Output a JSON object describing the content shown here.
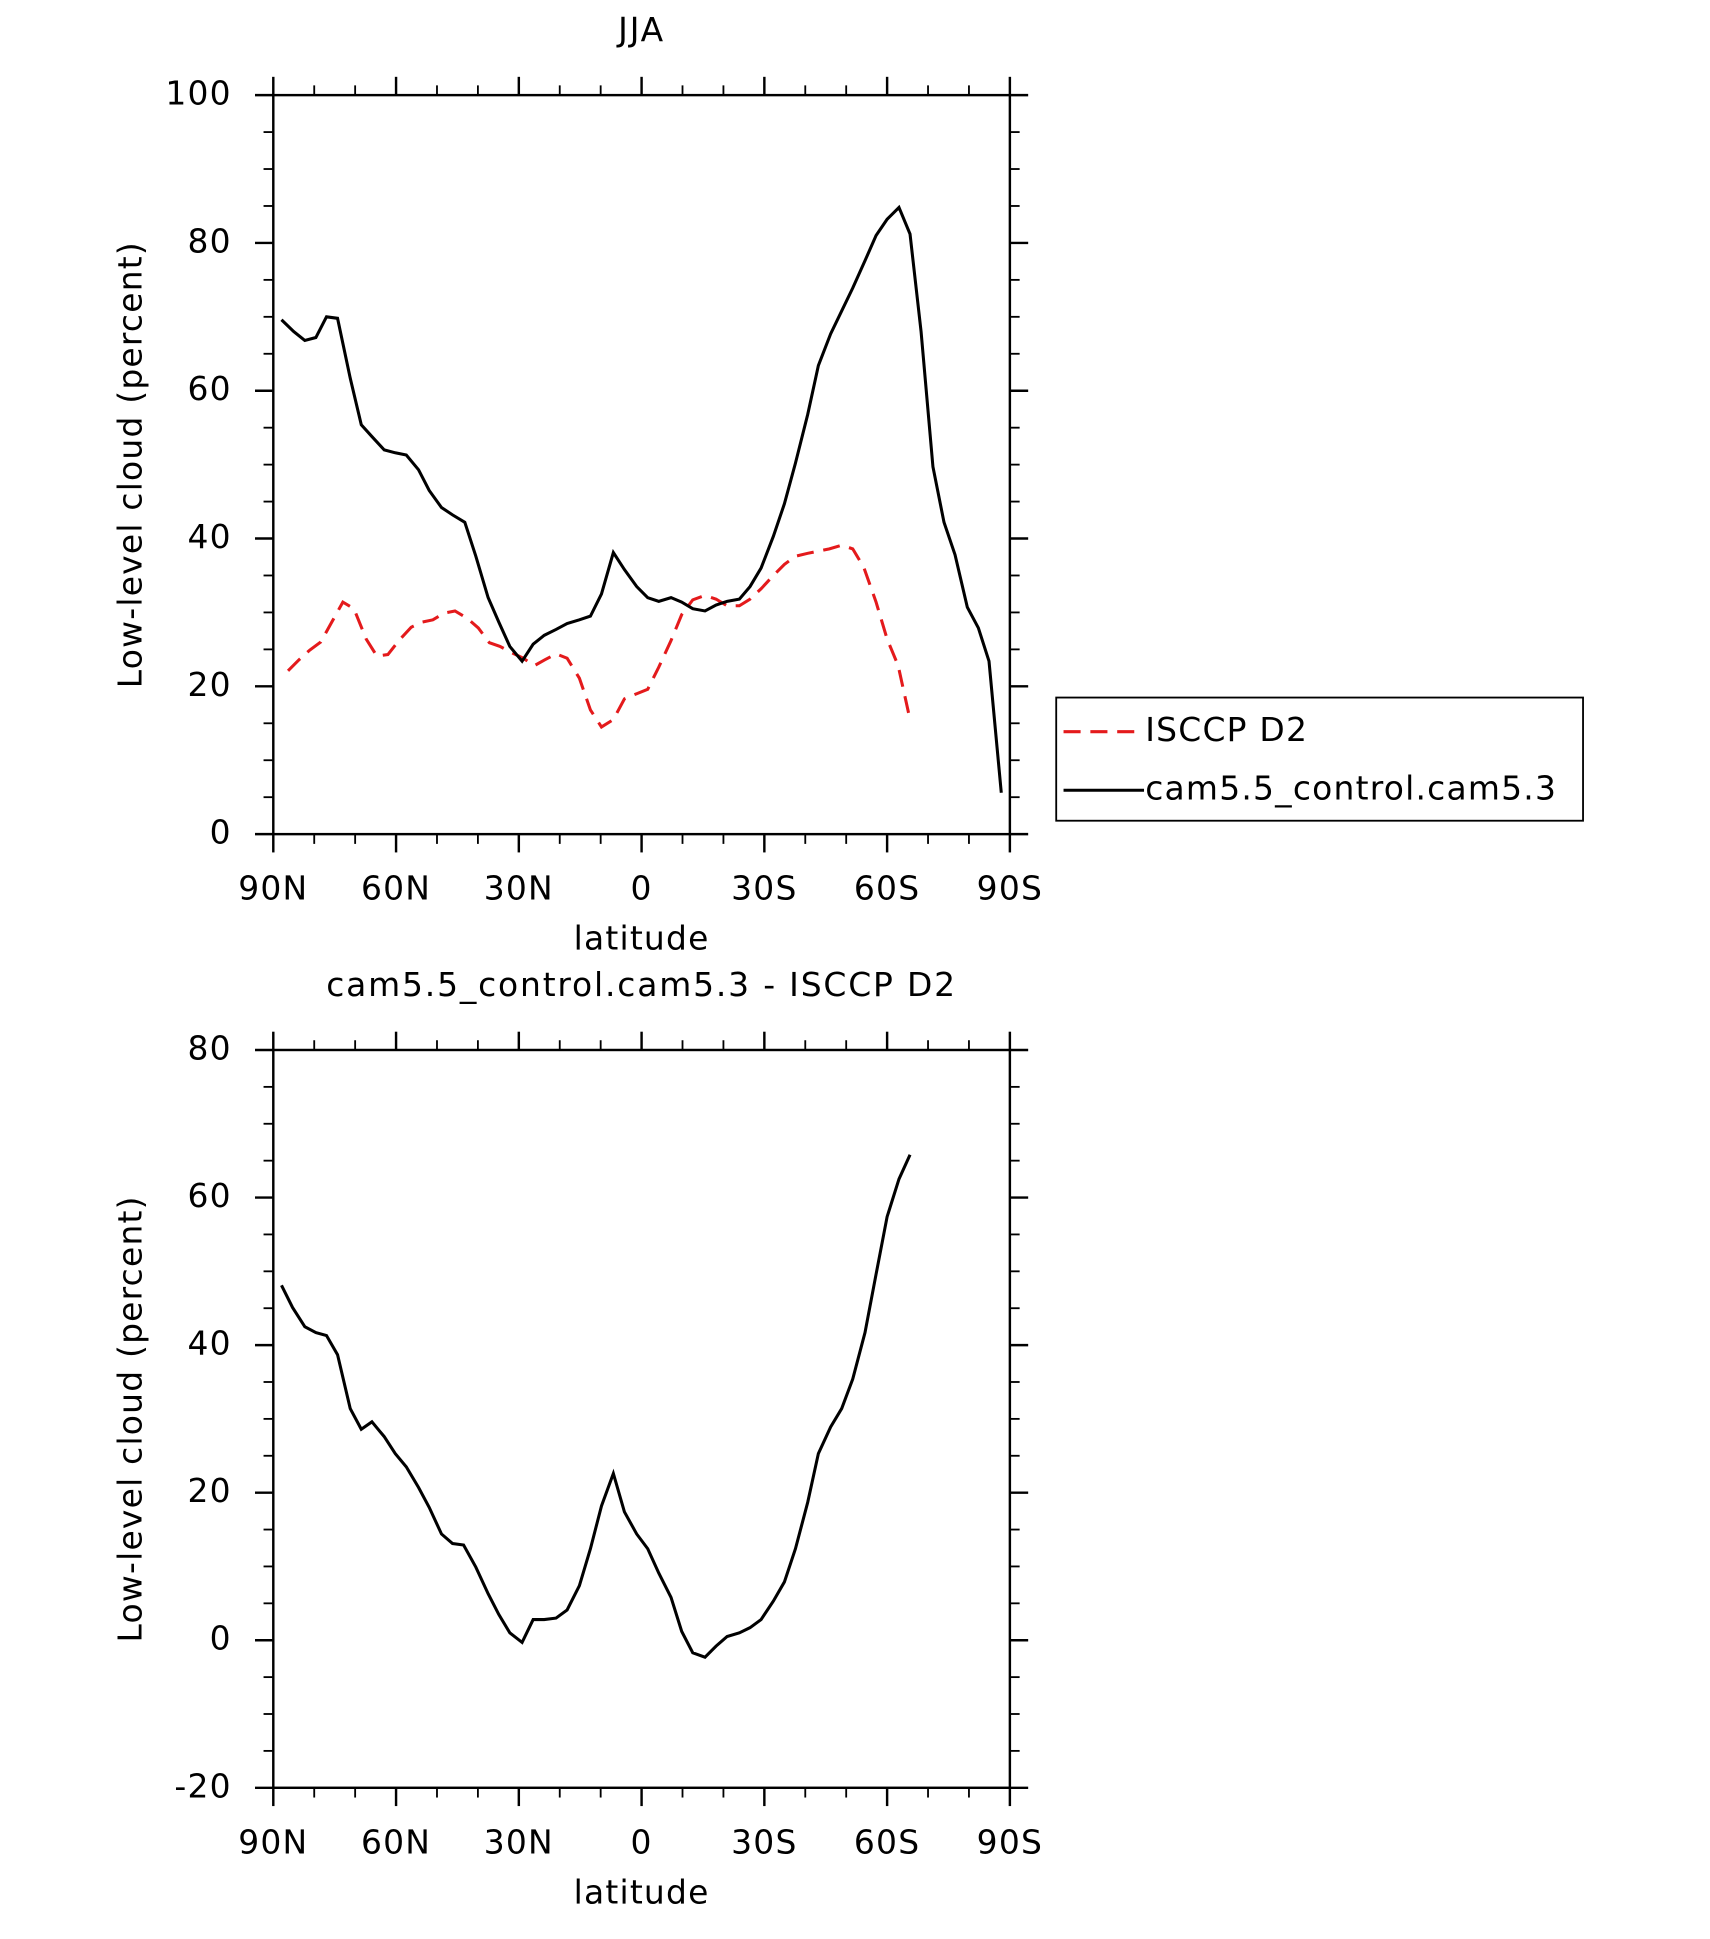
{
  "chart_data": [
    {
      "type": "line",
      "title": "JJA",
      "xlabel": "latitude",
      "ylabel": "Low-level cloud (percent)",
      "xlim": [
        90,
        -90
      ],
      "xticks": [
        {
          "value": 90,
          "label": "90N"
        },
        {
          "value": 60,
          "label": "60N"
        },
        {
          "value": 30,
          "label": "30N"
        },
        0,
        {
          "value": -30,
          "label": "30S"
        },
        {
          "value": -60,
          "label": "60S"
        },
        {
          "value": -90,
          "label": "90S"
        }
      ],
      "ylim": [
        0,
        100
      ],
      "yticks": [
        0,
        20,
        40,
        60,
        80,
        100
      ],
      "legend": "right",
      "series": [
        {
          "name": "ISCCP D2",
          "color": "#e41a1c",
          "linestyle": "dashed",
          "x": [
            86.4,
            83.7,
            81.1,
            78.4,
            75.7,
            73,
            70.3,
            67.3,
            64.7,
            62,
            59.3,
            56.3,
            53.6,
            51,
            48.3,
            45.6,
            42.6,
            39.9,
            37.2,
            34.6,
            31.9,
            28.9,
            26.2,
            23.6,
            20.9,
            18.2,
            15.2,
            12.5,
            9.8,
            6.9,
            4.2,
            1.2,
            -1.5,
            -4.2,
            -7.2,
            -9.8,
            -12.5,
            -15.5,
            -18.2,
            -20.9,
            -23.9,
            -26.5,
            -29.2,
            -32.2,
            -34.9,
            -37.6,
            -40.6,
            -43.2,
            -45.9,
            -48.9,
            -51.6,
            -54.3,
            -57.3,
            -60,
            -62.7,
            -65.6
          ],
          "values": [
            22.1,
            23.6,
            24.9,
            26,
            28.7,
            31.4,
            30.5,
            26.4,
            24.1,
            24.3,
            26.2,
            28,
            28.7,
            29,
            29.9,
            30.2,
            29.2,
            27.9,
            25.9,
            25.4,
            24.6,
            23.8,
            22.8,
            23.6,
            24.4,
            23.8,
            21.1,
            16.8,
            14.5,
            15.5,
            18.3,
            19,
            19.6,
            22.6,
            26.2,
            29.7,
            31.7,
            32.3,
            31.8,
            30.9,
            30.9,
            31.8,
            33.2,
            35,
            36.5,
            37.6,
            38,
            38.3,
            38.6,
            39.1,
            38.6,
            36.1,
            31.4,
            26.4,
            22.8,
            15.5
          ]
        },
        {
          "name": "cam5.5_control.cam5.3",
          "color": "#000000",
          "linestyle": "solid",
          "x": [
            88,
            85,
            82.3,
            79.6,
            77,
            74.3,
            71.2,
            68.5,
            65.9,
            62.9,
            60.2,
            57.5,
            54.5,
            51.9,
            48.9,
            46.2,
            43.2,
            40.5,
            37.5,
            34.9,
            32.2,
            29.2,
            26.5,
            23.8,
            20.9,
            18.2,
            15.2,
            12.5,
            9.8,
            6.9,
            4.2,
            1.2,
            -1.5,
            -4.2,
            -7.2,
            -9.8,
            -12.5,
            -15.5,
            -18.2,
            -20.9,
            -23.9,
            -26.5,
            -29.2,
            -32.2,
            -34.9,
            -37.6,
            -40.6,
            -43.2,
            -46.2,
            -48.9,
            -51.6,
            -54.6,
            -57.3,
            -60,
            -62.9,
            -65.6,
            -68.3,
            -71.2,
            -73.9,
            -76.6,
            -79.6,
            -82.3,
            -84.9,
            -87.9
          ],
          "values": [
            69.6,
            68,
            66.8,
            67.2,
            70,
            69.8,
            61.7,
            55.4,
            53.8,
            52,
            51.6,
            51.3,
            49.3,
            46.5,
            44.2,
            43.2,
            42.2,
            37.6,
            32,
            28.7,
            25.4,
            23.4,
            25.7,
            26.9,
            27.7,
            28.5,
            29,
            29.5,
            32.5,
            38.1,
            35.8,
            33.5,
            32,
            31.5,
            32,
            31.4,
            30.5,
            30.2,
            31,
            31.5,
            31.8,
            33.5,
            36,
            40.3,
            44.7,
            50.2,
            56.8,
            63.4,
            67.7,
            70.8,
            73.9,
            77.6,
            81,
            83.2,
            84.8,
            81.2,
            68,
            49.7,
            42.2,
            37.8,
            30.7,
            27.9,
            23.4,
            5.6
          ]
        }
      ]
    },
    {
      "type": "line",
      "title": "cam5.5_control.cam5.3 - ISCCP D2",
      "xlabel": "latitude",
      "ylabel": "Low-level cloud (percent)",
      "xlim": [
        90,
        -90
      ],
      "xticks": [
        {
          "value": 90,
          "label": "90N"
        },
        {
          "value": 60,
          "label": "60N"
        },
        {
          "value": 30,
          "label": "30N"
        },
        0,
        {
          "value": -30,
          "label": "30S"
        },
        {
          "value": -60,
          "label": "60S"
        },
        {
          "value": -90,
          "label": "90S"
        }
      ],
      "ylim": [
        -20,
        80
      ],
      "yticks": [
        -20,
        0,
        20,
        40,
        60,
        80
      ],
      "series": [
        {
          "color": "#000000",
          "linestyle": "solid",
          "x": [
            88,
            85.3,
            82.3,
            79.6,
            77,
            74.3,
            71.2,
            68.5,
            65.9,
            62.9,
            60.2,
            57.5,
            54.5,
            51.9,
            48.9,
            46.2,
            43.5,
            40.5,
            37.5,
            34.9,
            32.2,
            29.2,
            26.5,
            23.8,
            20.9,
            18.2,
            15.2,
            12.5,
            9.8,
            6.9,
            4.2,
            1.2,
            -1.5,
            -4.2,
            -7.2,
            -9.8,
            -12.5,
            -15.5,
            -18.2,
            -20.9,
            -23.9,
            -26.5,
            -29.2,
            -32.2,
            -34.9,
            -37.6,
            -40.6,
            -43.2,
            -46.2,
            -48.9,
            -51.6,
            -54.6,
            -57.3,
            -60,
            -62.9,
            -65.6
          ],
          "values": [
            48.1,
            45.1,
            42.5,
            41.7,
            41.3,
            38.7,
            31.4,
            28.6,
            29.6,
            27.6,
            25.3,
            23.5,
            20.7,
            18,
            14.4,
            13.1,
            12.9,
            9.9,
            6.3,
            3.5,
            1,
            -0.3,
            2.8,
            2.8,
            3,
            4.1,
            7.4,
            12.4,
            18.2,
            22.6,
            17.4,
            14.4,
            12.4,
            9.1,
            5.8,
            1.2,
            -1.7,
            -2.3,
            -0.8,
            0.5,
            1,
            1.7,
            2.8,
            5.3,
            7.9,
            12.4,
            18.7,
            25.3,
            28.9,
            31.4,
            35.4,
            41.7,
            49.6,
            57.4,
            62.5,
            65.8
          ]
        }
      ]
    }
  ]
}
